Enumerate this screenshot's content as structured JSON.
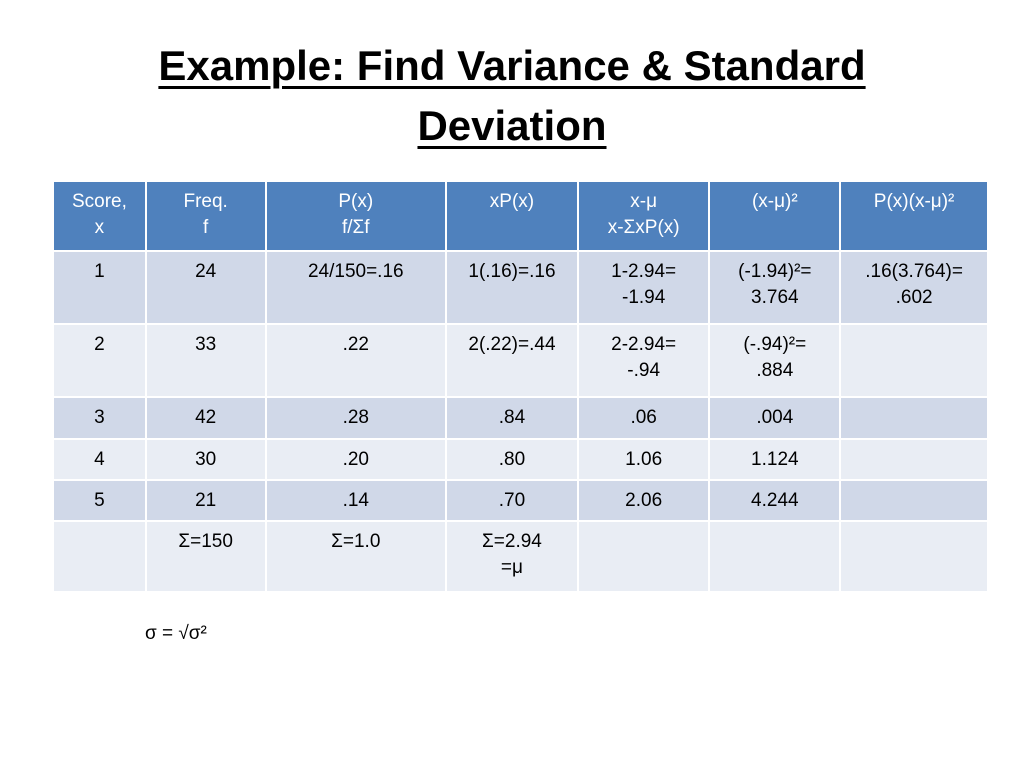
{
  "title": [
    "Example: Find Variance & Standard",
    "Deviation"
  ],
  "table": {
    "header": [
      [
        "Score,",
        "x"
      ],
      [
        "Freq.",
        "f"
      ],
      [
        "P(x)",
        "f/Σf"
      ],
      "xP(x)",
      [
        "x-μ",
        "x-ΣxP(x)"
      ],
      "(x-μ)²",
      "P(x)(x-μ)²"
    ],
    "rows": [
      [
        "1",
        "24",
        "24/150=.16",
        "1(.16)=.16",
        [
          "1-2.94=",
          "-1.94"
        ],
        [
          "(-1.94)²=",
          "3.764"
        ],
        [
          ".16(3.764)=",
          ".602"
        ]
      ],
      [
        "2",
        "33",
        ".22",
        "2(.22)=.44",
        [
          "2-2.94=",
          "-.94"
        ],
        [
          "(-.94)²=",
          ".884"
        ],
        null
      ],
      [
        "3",
        "42",
        ".28",
        ".84",
        ".06",
        ".004",
        null
      ],
      [
        "4",
        "30",
        ".20",
        ".80",
        "1.06",
        "1.124",
        null
      ],
      [
        "5",
        "21",
        ".14",
        ".70",
        "2.06",
        "4.244",
        null
      ],
      [
        null,
        "Σ=150",
        "Σ=1.0",
        [
          "Σ=2.94",
          "=μ"
        ],
        null,
        null,
        null
      ]
    ]
  },
  "formula": "σ = √σ²"
}
